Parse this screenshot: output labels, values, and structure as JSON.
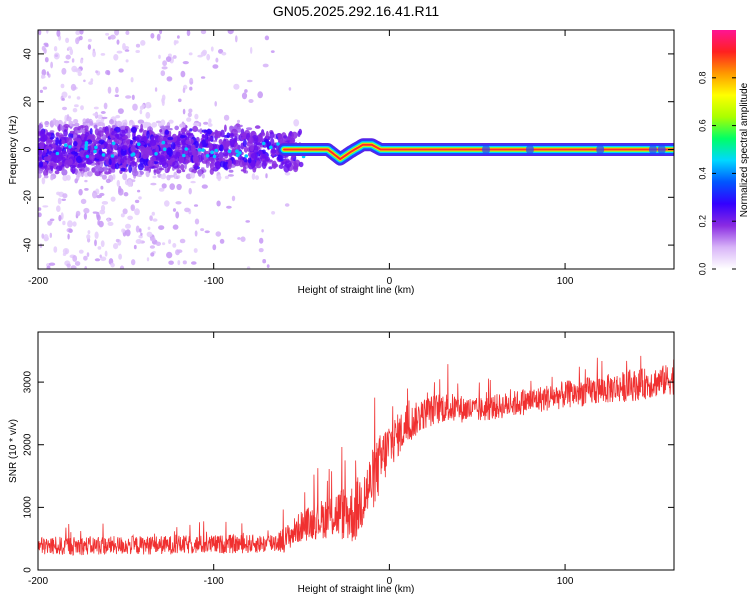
{
  "title": "GN05.2025.292.16.41.R11",
  "chart_data": [
    {
      "type": "heatmap",
      "title": "",
      "xlabel": "Height of straight line (km)",
      "ylabel": "Frequency (Hz)",
      "xlim": [
        -200,
        162
      ],
      "ylim": [
        -50,
        50
      ],
      "xticks": [
        -200,
        -100,
        0,
        100
      ],
      "yticks": [
        -40,
        -20,
        0,
        20,
        40
      ],
      "colorbar": {
        "label": "Normalized spectral amplitude",
        "range": [
          0,
          1
        ],
        "ticks": [
          0.0,
          0.2,
          0.4,
          0.6,
          0.8
        ],
        "colors": [
          "#ffffff",
          "#d8b4f8",
          "#8a2be2",
          "#3300ff",
          "#0055ff",
          "#00d8ff",
          "#00ff66",
          "#aaff00",
          "#ffff00",
          "#ff9900",
          "#ff2020",
          "#ff1493"
        ]
      },
      "ridge_profile": {
        "x": [
          -200,
          -60,
          -45,
          -35,
          -28,
          -22,
          -15,
          -10,
          -5,
          0,
          162
        ],
        "frequency": [
          0,
          0,
          0,
          0,
          -4,
          -1,
          2,
          2,
          0,
          0,
          0
        ]
      },
      "noise_x_range": [
        -200,
        -45
      ],
      "noise_freq_range": [
        -50,
        50
      ],
      "grid": false
    },
    {
      "type": "line",
      "title": "",
      "xlabel": "Height of straight line (km)",
      "ylabel": "SNR (10 * v/v)",
      "xlim": [
        -200,
        162
      ],
      "ylim": [
        0,
        3800
      ],
      "xticks": [
        -200,
        -100,
        0,
        100
      ],
      "yticks": [
        0,
        1000,
        2000,
        3000
      ],
      "series": [
        {
          "color": "#f03030",
          "trend_x": [
            -200,
            -120,
            -70,
            -60,
            -50,
            -40,
            -30,
            -20,
            -12,
            -5,
            0,
            10,
            20,
            30,
            50,
            100,
            140,
            162
          ],
          "trend_y": [
            380,
            400,
            420,
            480,
            700,
            800,
            900,
            900,
            1300,
            1700,
            2000,
            2300,
            2500,
            2600,
            2550,
            2800,
            2950,
            3050
          ],
          "noise_amplitude": [
            150,
            150,
            150,
            200,
            250,
            300,
            400,
            500,
            500,
            500,
            400,
            300,
            250,
            250,
            200,
            220,
            250,
            250
          ]
        }
      ],
      "grid": false
    }
  ]
}
